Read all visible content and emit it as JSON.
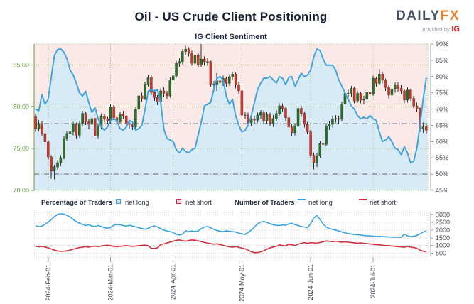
{
  "header": {
    "title": "Oil - US Crude Client Positioning",
    "subtitle": "IG Client Sentiment",
    "logo": {
      "brand_left": "DAILY",
      "brand_right": "FX",
      "provided_by": "provided by",
      "provider": "IG"
    }
  },
  "legend": {
    "percentage_header": "Percentage of Traders",
    "number_header": "Number of Traders",
    "net_long_label": "net long",
    "net_short_label": "net short",
    "net_long_label2": "net long",
    "net_short_label2": "net short"
  },
  "colors": {
    "sentiment_line": "#38a2e2",
    "long_fill": "#d9eaf7",
    "short_fill": "#fbe9e8",
    "candle_up": "#2b6e2b",
    "candle_up_stroke": "#1e4d1e",
    "candle_down": "#c23b2e",
    "candle_down_stroke": "#8e2a22",
    "wick": "#2a2a2a",
    "price_axis_green": "#5f9e3e",
    "grid_green": "#8bc34a",
    "pct_axis_gray": "#41454f",
    "axis_line_gray": "#9aa0a8",
    "grid_gray": "#c9ccd2",
    "refline_gray": "#7e848f",
    "count_long_line": "#38a2e2",
    "count_short_line": "#d92b3a",
    "date_label": "#39404f"
  },
  "chart_data": [
    {
      "type": "candlestick+line",
      "title": "IG Client Sentiment",
      "price_axis": {
        "side": "left",
        "range": [
          70,
          87.5
        ],
        "ticks": [
          70,
          75,
          80,
          85
        ],
        "tick_labels": [
          "70.00",
          "75.00",
          "80.00",
          "85.00"
        ]
      },
      "pct_axis": {
        "side": "right",
        "range": [
          45,
          90
        ],
        "ticks": [
          45,
          50,
          55,
          60,
          65,
          70,
          75,
          80,
          85,
          90
        ],
        "tick_labels": [
          "45%",
          "50%",
          "55%",
          "60%",
          "65%",
          "70%",
          "75%",
          "80%",
          "85%",
          "90%"
        ]
      },
      "reference_lines_pct": [
        50,
        65.5
      ],
      "x_months": [
        {
          "label": "2024-Feb-01",
          "i": 4
        },
        {
          "label": "2024-Mar-01",
          "i": 24
        },
        {
          "label": "2024-Apr-01",
          "i": 44
        },
        {
          "label": "2024-May-01",
          "i": 66
        },
        {
          "label": "2024-Jun-01",
          "i": 88
        },
        {
          "label": "2024-Jul-01",
          "i": 108
        }
      ],
      "candles_ohlc": [
        [
          78.8,
          79.1,
          77.0,
          77.4
        ],
        [
          77.4,
          78.4,
          77.1,
          78.0
        ],
        [
          78.0,
          78.3,
          76.5,
          76.8
        ],
        [
          76.8,
          77.2,
          75.4,
          75.8
        ],
        [
          75.8,
          76.0,
          73.7,
          74.0
        ],
        [
          74.0,
          74.2,
          71.4,
          72.3
        ],
        [
          72.3,
          73.0,
          71.3,
          72.8
        ],
        [
          72.8,
          73.6,
          72.4,
          73.3
        ],
        [
          73.3,
          74.2,
          72.9,
          73.9
        ],
        [
          73.9,
          76.5,
          73.7,
          76.2
        ],
        [
          76.2,
          77.1,
          75.9,
          76.8
        ],
        [
          76.8,
          77.4,
          76.3,
          77.0
        ],
        [
          77.0,
          78.2,
          76.6,
          77.9
        ],
        [
          77.9,
          78.1,
          76.2,
          76.6
        ],
        [
          76.6,
          78.3,
          76.3,
          78.0
        ],
        [
          78.0,
          79.5,
          77.7,
          79.2
        ],
        [
          79.2,
          79.4,
          77.8,
          78.2
        ],
        [
          78.2,
          78.5,
          77.3,
          77.9
        ],
        [
          77.9,
          78.9,
          77.6,
          78.6
        ],
        [
          78.6,
          78.8,
          76.2,
          76.5
        ],
        [
          76.5,
          77.9,
          76.2,
          77.6
        ],
        [
          77.6,
          79.2,
          77.3,
          78.9
        ],
        [
          78.9,
          79.1,
          78.1,
          78.5
        ],
        [
          78.5,
          78.8,
          77.9,
          78.3
        ],
        [
          78.3,
          80.3,
          78.0,
          80.0
        ],
        [
          80.0,
          80.2,
          78.4,
          78.7
        ],
        [
          78.7,
          79.0,
          77.8,
          78.2
        ],
        [
          78.2,
          79.4,
          77.9,
          79.1
        ],
        [
          79.1,
          79.5,
          78.5,
          78.9
        ],
        [
          78.9,
          79.2,
          77.6,
          78.0
        ],
        [
          78.0,
          78.4,
          77.4,
          77.9
        ],
        [
          77.9,
          78.2,
          77.2,
          77.6
        ],
        [
          77.6,
          80.0,
          77.4,
          79.7
        ],
        [
          79.7,
          81.6,
          79.4,
          81.3
        ],
        [
          81.3,
          81.7,
          80.6,
          81.0
        ],
        [
          81.0,
          83.0,
          80.8,
          82.7
        ],
        [
          82.7,
          83.8,
          82.4,
          83.5
        ],
        [
          83.5,
          83.7,
          81.4,
          81.7
        ],
        [
          81.7,
          82.0,
          80.7,
          81.1
        ],
        [
          81.1,
          81.4,
          80.2,
          80.6
        ],
        [
          80.6,
          82.2,
          80.4,
          81.9
        ],
        [
          81.9,
          82.3,
          81.2,
          81.6
        ],
        [
          81.6,
          81.9,
          80.9,
          81.3
        ],
        [
          81.3,
          83.5,
          81.1,
          83.2
        ],
        [
          83.2,
          84.0,
          82.8,
          83.7
        ],
        [
          83.7,
          85.5,
          83.5,
          85.2
        ],
        [
          85.2,
          85.8,
          84.8,
          85.4
        ],
        [
          85.4,
          86.9,
          85.1,
          86.6
        ],
        [
          86.6,
          87.3,
          86.2,
          86.9
        ],
        [
          86.9,
          87.1,
          86.0,
          86.4
        ],
        [
          86.4,
          86.7,
          84.9,
          85.2
        ],
        [
          85.2,
          86.5,
          84.9,
          86.2
        ],
        [
          86.2,
          86.4,
          84.7,
          85.0
        ],
        [
          85.0,
          87.5,
          84.8,
          85.7
        ],
        [
          85.7,
          86.0,
          84.9,
          85.4
        ],
        [
          85.4,
          85.8,
          84.9,
          85.4
        ],
        [
          85.4,
          85.5,
          82.4,
          82.7
        ],
        [
          82.7,
          83.1,
          81.8,
          82.7
        ],
        [
          82.7,
          84.0,
          81.9,
          83.1
        ],
        [
          83.1,
          83.4,
          82.5,
          82.9
        ],
        [
          82.9,
          83.7,
          82.5,
          83.4
        ],
        [
          83.4,
          83.6,
          82.4,
          82.8
        ],
        [
          82.8,
          83.9,
          82.5,
          83.6
        ],
        [
          83.6,
          84.2,
          83.2,
          83.9
        ],
        [
          83.9,
          84.1,
          82.2,
          82.6
        ],
        [
          82.6,
          83.0,
          81.5,
          81.9
        ],
        [
          81.9,
          82.0,
          78.7,
          79.0
        ],
        [
          79.0,
          79.4,
          78.5,
          79.0
        ],
        [
          79.0,
          79.3,
          77.8,
          78.1
        ],
        [
          78.1,
          78.9,
          77.7,
          78.5
        ],
        [
          78.5,
          78.9,
          78.0,
          78.4
        ],
        [
          78.4,
          79.3,
          78.1,
          79.0
        ],
        [
          79.0,
          79.6,
          78.6,
          79.3
        ],
        [
          79.3,
          79.5,
          77.9,
          78.3
        ],
        [
          78.3,
          79.4,
          78.0,
          79.1
        ],
        [
          79.1,
          79.3,
          77.7,
          78.0
        ],
        [
          78.0,
          79.0,
          77.6,
          78.6
        ],
        [
          78.6,
          79.6,
          78.3,
          79.2
        ],
        [
          79.2,
          80.4,
          78.9,
          80.1
        ],
        [
          80.1,
          80.4,
          79.4,
          79.8
        ],
        [
          79.8,
          80.0,
          78.3,
          78.7
        ],
        [
          78.7,
          79.0,
          77.2,
          77.6
        ],
        [
          77.6,
          77.9,
          76.5,
          76.9
        ],
        [
          76.9,
          78.0,
          76.6,
          77.7
        ],
        [
          77.7,
          80.1,
          77.5,
          79.8
        ],
        [
          79.8,
          80.1,
          78.8,
          79.2
        ],
        [
          79.2,
          79.4,
          77.5,
          77.9
        ],
        [
          77.9,
          78.2,
          76.7,
          77.0
        ],
        [
          77.0,
          77.2,
          73.9,
          74.2
        ],
        [
          74.2,
          74.5,
          72.5,
          73.3
        ],
        [
          73.3,
          74.4,
          72.8,
          74.1
        ],
        [
          74.1,
          75.9,
          73.9,
          75.6
        ],
        [
          75.6,
          76.0,
          75.1,
          75.5
        ],
        [
          75.5,
          78.0,
          75.3,
          77.7
        ],
        [
          77.7,
          78.3,
          77.2,
          77.9
        ],
        [
          77.9,
          78.9,
          77.5,
          78.5
        ],
        [
          78.5,
          79.0,
          78.1,
          78.6
        ],
        [
          78.6,
          78.9,
          77.9,
          78.5
        ],
        [
          78.5,
          80.6,
          78.3,
          80.3
        ],
        [
          80.3,
          81.9,
          80.1,
          81.6
        ],
        [
          81.6,
          82.0,
          81.1,
          81.6
        ],
        [
          81.6,
          82.5,
          81.2,
          82.2
        ],
        [
          82.2,
          82.4,
          80.4,
          80.7
        ],
        [
          80.7,
          81.9,
          80.5,
          81.6
        ],
        [
          81.6,
          81.8,
          80.4,
          80.8
        ],
        [
          80.8,
          81.3,
          80.3,
          80.9
        ],
        [
          80.9,
          82.0,
          80.6,
          81.7
        ],
        [
          81.7,
          82.1,
          81.0,
          81.5
        ],
        [
          81.5,
          83.7,
          81.3,
          83.4
        ],
        [
          83.4,
          83.6,
          82.4,
          82.8
        ],
        [
          82.8,
          84.5,
          82.6,
          83.9
        ],
        [
          83.9,
          84.2,
          82.8,
          83.2
        ],
        [
          83.2,
          83.4,
          81.9,
          82.3
        ],
        [
          82.3,
          82.6,
          81.0,
          81.4
        ],
        [
          81.4,
          82.4,
          81.0,
          82.1
        ],
        [
          82.1,
          82.9,
          81.7,
          82.6
        ],
        [
          82.6,
          82.9,
          81.8,
          82.2
        ],
        [
          82.2,
          82.6,
          81.5,
          81.9
        ],
        [
          81.9,
          82.1,
          80.4,
          80.8
        ],
        [
          80.8,
          82.3,
          80.5,
          82.0
        ],
        [
          82.0,
          82.2,
          80.7,
          81.0
        ],
        [
          81.0,
          81.3,
          79.8,
          80.1
        ],
        [
          80.1,
          80.5,
          79.4,
          79.8
        ],
        [
          79.8,
          79.9,
          77.0,
          77.4
        ],
        [
          77.4,
          78.1,
          76.9,
          77.6
        ],
        [
          77.6,
          77.9,
          76.8,
          77.2
        ]
      ],
      "sentiment_pct": [
        70,
        69.5,
        74.5,
        71.5,
        73,
        80,
        86.5,
        88.3,
        88.5,
        87.5,
        85.5,
        82,
        80.5,
        78,
        75,
        74,
        75.5,
        72,
        69,
        70.5,
        67,
        64.5,
        63.5,
        64.5,
        66.5,
        67,
        66.5,
        64,
        63.5,
        64.5,
        66.5,
        66,
        63.5,
        64,
        65,
        70,
        75.5,
        76,
        75.5,
        76,
        72,
        64,
        61,
        60.5,
        60,
        57.5,
        56.5,
        58,
        57,
        56.5,
        57.5,
        58,
        62,
        66,
        71,
        71.5,
        72,
        76,
        79.5,
        80,
        79,
        74,
        71.5,
        73,
        68,
        65,
        63,
        63.5,
        65,
        68,
        72,
        76,
        78,
        79.5,
        79.5,
        80,
        79,
        78,
        80,
        79.5,
        77.5,
        79.8,
        80,
        77,
        79,
        81,
        80,
        80.5,
        82,
        86,
        88.5,
        88,
        85.5,
        83.5,
        83.5,
        83.5,
        82,
        79,
        77,
        75,
        73,
        71,
        70,
        68,
        67,
        67.5,
        67,
        68,
        67,
        66.5,
        63,
        60,
        60.5,
        61.5,
        60,
        58,
        57.5,
        56,
        58.5,
        56.5,
        53.5,
        54,
        58,
        65,
        73,
        79.5
      ]
    },
    {
      "type": "line",
      "y_axis": {
        "side": "right",
        "range": [
          250,
          3150
        ],
        "ticks": [
          500,
          1000,
          1500,
          2000,
          2500,
          3000
        ],
        "tick_labels": [
          "500",
          "1000",
          "1500",
          "2000",
          "2500",
          "3000"
        ]
      },
      "series": [
        {
          "name": "net long",
          "color": "#38a2e2",
          "values": [
            2280,
            2230,
            2260,
            2380,
            2520,
            2680,
            2880,
            3020,
            3060,
            3040,
            2960,
            2850,
            2700,
            2550,
            2450,
            2380,
            2300,
            2350,
            2270,
            2230,
            2300,
            2230,
            2170,
            2120,
            2170,
            2320,
            2370,
            2340,
            2300,
            2260,
            2310,
            2260,
            2210,
            2160,
            2100,
            2060,
            2120,
            2220,
            2270,
            2200,
            2100,
            2000,
            1950,
            1900,
            1850,
            1720,
            1680,
            1750,
            1950,
            1900,
            1950,
            1900,
            1950,
            2100,
            2200,
            2240,
            2150,
            2050,
            1980,
            1920,
            1900,
            1950,
            1920,
            1900,
            1880,
            1800,
            1760,
            1720,
            1850,
            2000,
            2200,
            2400,
            2520,
            2560,
            2500,
            2420,
            2350,
            2320,
            2300,
            2340,
            2320,
            2400,
            2440,
            2360,
            2300,
            2240,
            2200,
            2160,
            2420,
            2780,
            2950,
            2700,
            2400,
            2200,
            2100,
            2050,
            2000,
            1950,
            1880,
            1820,
            1780,
            1750,
            1720,
            1700,
            1680,
            1650,
            1640,
            1620,
            1610,
            1600,
            1590,
            1580,
            1570,
            1560,
            1550,
            1545,
            1540,
            1535,
            1740,
            1620,
            1580,
            1600,
            1660,
            1760,
            1880,
            1950
          ]
        },
        {
          "name": "net short",
          "color": "#d92b3a",
          "values": [
            950,
            920,
            945,
            905,
            850,
            775,
            700,
            645,
            620,
            630,
            655,
            700,
            760,
            820,
            870,
            900,
            930,
            900,
            940,
            960,
            920,
            970,
            1000,
            1020,
            990,
            940,
            925,
            950,
            970,
            1000,
            965,
            945,
            965,
            990,
            1010,
            1030,
            985,
            825,
            805,
            855,
            1060,
            1100,
            1160,
            1220,
            1280,
            1340,
            1360,
            1320,
            1280,
            1320,
            1360,
            1340,
            1300,
            1260,
            1200,
            1150,
            1120,
            1090,
            1110,
            1060,
            1010,
            960,
            920,
            900,
            930,
            880,
            830,
            790,
            700,
            600,
            530,
            545,
            590,
            660,
            760,
            850,
            905,
            950,
            1040,
            1000,
            975,
            1090,
            1045,
            1000,
            1090,
            1140,
            1190,
            1140,
            1190,
            1170,
            1150,
            1200,
            1250,
            1295,
            1275,
            1250,
            1280,
            1250,
            1220,
            1240,
            1215,
            1195,
            1175,
            1150,
            1170,
            1140,
            1120,
            1100,
            1080,
            1060,
            1040,
            1020,
            1000,
            990,
            970,
            950,
            930,
            910,
            890,
            945,
            900,
            870,
            820,
            700,
            630,
            600
          ]
        }
      ]
    }
  ]
}
